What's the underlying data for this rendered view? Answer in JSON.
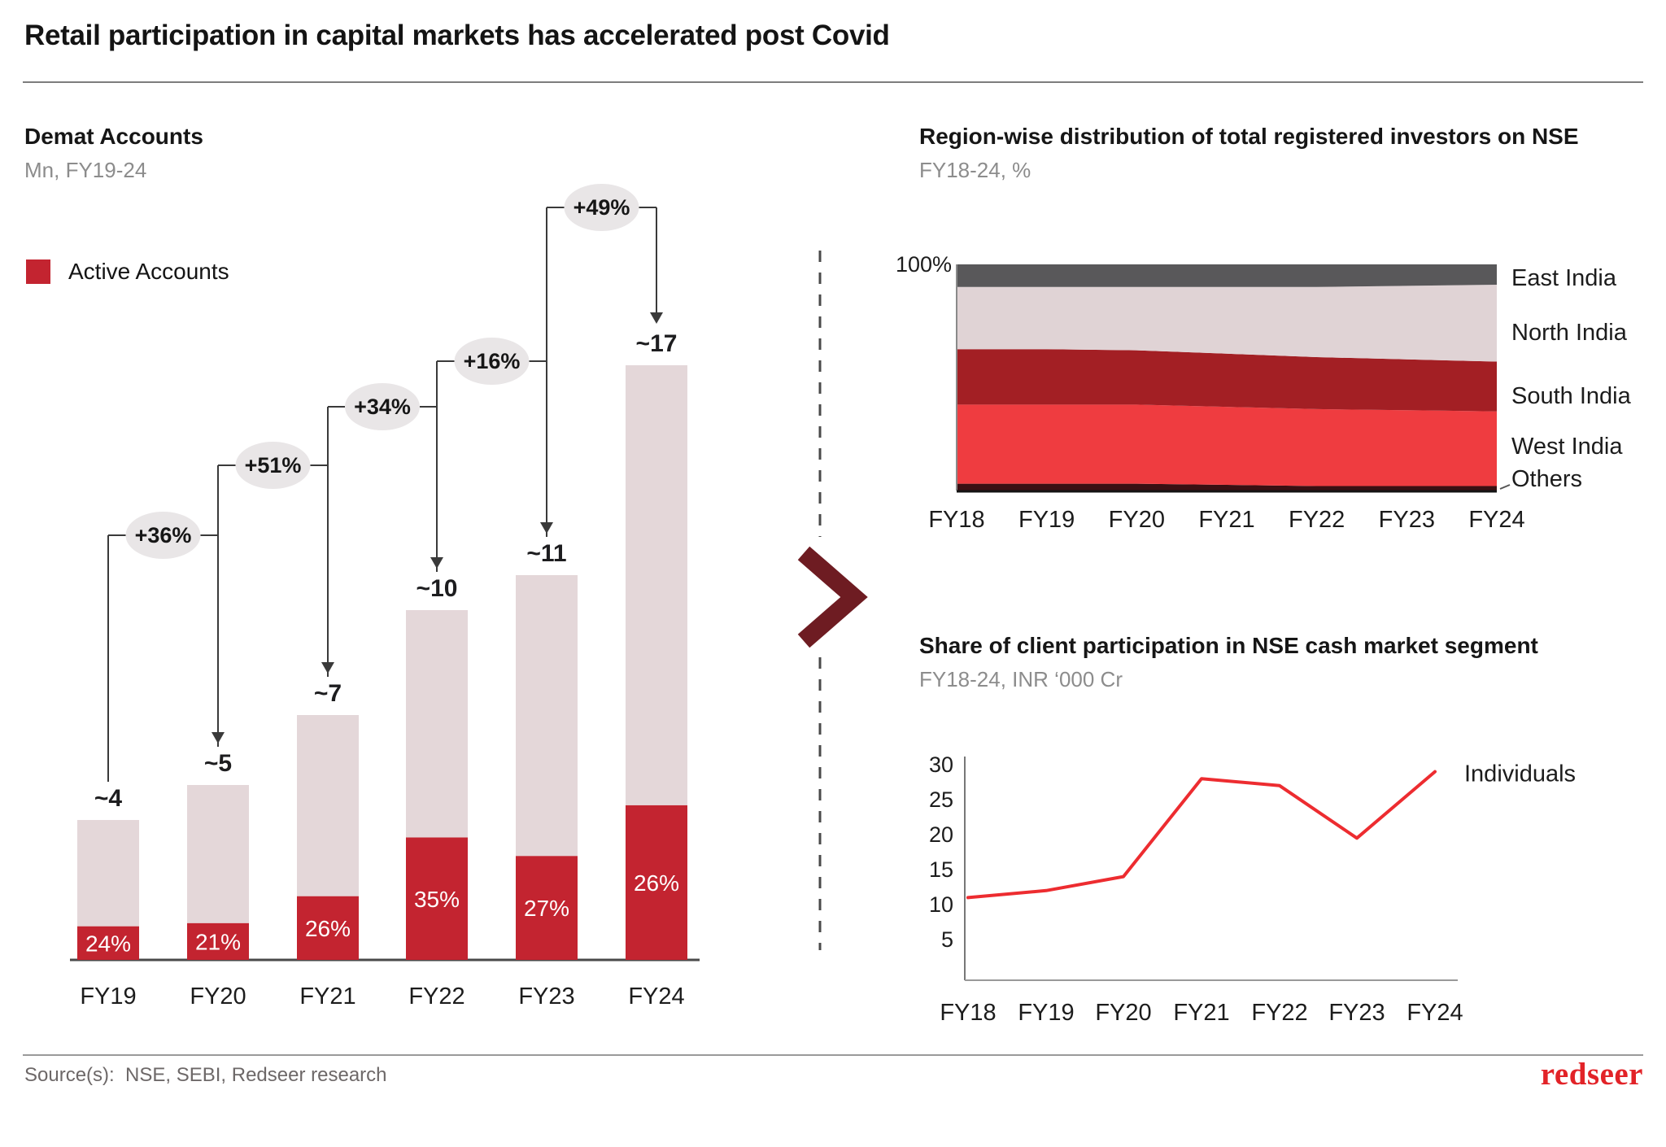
{
  "page": {
    "title": "Retail participation in capital markets has accelerated post Covid"
  },
  "footer": {
    "source": "Source(s):  NSE, SEBI, Redseer research",
    "logo_text": "redseer"
  },
  "chart_data": [
    {
      "id": "demat-accounts",
      "type": "bar",
      "title": "Demat Accounts",
      "subtitle": "Mn, FY19-24",
      "stacked": true,
      "categories": [
        "FY19",
        "FY20",
        "FY21",
        "FY22",
        "FY23",
        "FY24"
      ],
      "totals": [
        4,
        5,
        7,
        10,
        11,
        17
      ],
      "total_labels": [
        "~4",
        "~5",
        "~7",
        "~10",
        "~11",
        "~17"
      ],
      "active_share_pct": [
        24,
        21,
        26,
        35,
        27,
        26
      ],
      "active_share_labels": [
        "24%",
        "21%",
        "26%",
        "35%",
        "27%",
        "26%"
      ],
      "growth_labels": [
        "+36%",
        "+51%",
        "+34%",
        "+16%",
        "+49%"
      ],
      "legend": [
        {
          "label": "Active Accounts",
          "color": "#c32430"
        }
      ],
      "colors": {
        "active": "#c32430",
        "inactive": "#e4d7d9",
        "bubble": "#e9e6e7",
        "connector": "#3a3a3a"
      },
      "ylim": [
        0,
        17
      ]
    },
    {
      "id": "region-distribution",
      "type": "area",
      "title": "Region-wise distribution of total registered investors on NSE",
      "subtitle": "FY18-24, %",
      "categories": [
        "FY18",
        "FY19",
        "FY20",
        "FY21",
        "FY22",
        "FY23",
        "FY24"
      ],
      "y_top_label": "100%",
      "ylim": [
        0,
        100
      ],
      "series_bottom_up": [
        {
          "name": "Others",
          "color": "#3a1013",
          "values": [
            3,
            3,
            3,
            2.5,
            2,
            2,
            2
          ]
        },
        {
          "name": "West India",
          "color": "#ef3c40",
          "values": [
            35,
            35,
            35,
            34.5,
            34,
            33.5,
            33
          ]
        },
        {
          "name": "South India",
          "color": "#a31f24",
          "values": [
            24.5,
            24.5,
            24,
            23.5,
            23,
            22.5,
            22
          ]
        },
        {
          "name": "North India",
          "color": "#e0d3d5",
          "values": [
            27.5,
            27.5,
            28,
            29.5,
            31,
            32.5,
            34
          ]
        },
        {
          "name": "East India",
          "color": "#59585a",
          "values": [
            10,
            10,
            10,
            10,
            10,
            9.5,
            9
          ]
        }
      ]
    },
    {
      "id": "client-participation",
      "type": "line",
      "title": "Share of client participation in NSE cash market segment",
      "subtitle": "FY18-24, INR ‘000 Cr",
      "categories": [
        "FY18",
        "FY19",
        "FY20",
        "FY21",
        "FY22",
        "FY23",
        "FY24"
      ],
      "series": [
        {
          "name": "Individuals",
          "color": "#ed2c30",
          "values": [
            11,
            12,
            14,
            28,
            27,
            19.5,
            29
          ]
        }
      ],
      "yticks": [
        30,
        25,
        20,
        15,
        10,
        5
      ],
      "ylim": [
        0,
        30
      ],
      "grid": false,
      "legend_position": "right-of-line-end"
    }
  ],
  "divider": {
    "chevron_color": "#6e1c22",
    "line_color": "#4a4a4a"
  }
}
